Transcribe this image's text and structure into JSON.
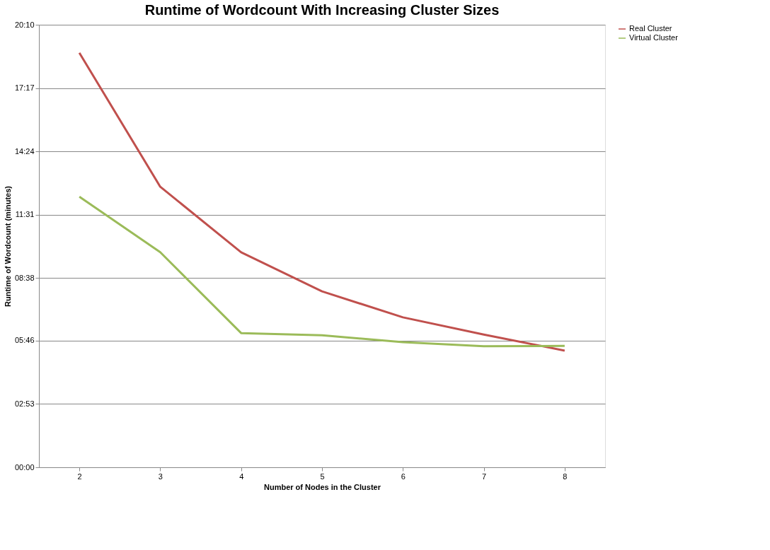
{
  "chart_data": {
    "type": "line",
    "title": "Runtime of Wordcount With Increasing Cluster Sizes",
    "xlabel": "Number of Nodes in the Cluster",
    "ylabel": "Runtime of Wordcount (minutes)",
    "categories": [
      "2",
      "3",
      "4",
      "5",
      "6",
      "7",
      "8"
    ],
    "series": [
      {
        "name": "Real Cluster",
        "color": "#c0504d",
        "values": [
          1133,
          767,
          588,
          481,
          410,
          363,
          319
        ]
      },
      {
        "name": "Virtual Cluster",
        "color": "#9bbb59",
        "values": [
          740,
          588,
          367,
          361,
          342,
          331,
          332
        ]
      }
    ],
    "ylim": [
      0,
      1210
    ],
    "yticks": [
      {
        "value": 0,
        "label": "00:00"
      },
      {
        "value": 173,
        "label": "02:53"
      },
      {
        "value": 346,
        "label": "05:46"
      },
      {
        "value": 518,
        "label": "08:38"
      },
      {
        "value": 691,
        "label": "11:31"
      },
      {
        "value": 864,
        "label": "14:24"
      },
      {
        "value": 1037,
        "label": "17:17"
      },
      {
        "value": 1210,
        "label": "20:10"
      }
    ],
    "grid": "y",
    "legend": "right",
    "marker": "none",
    "line_style": "solid"
  }
}
